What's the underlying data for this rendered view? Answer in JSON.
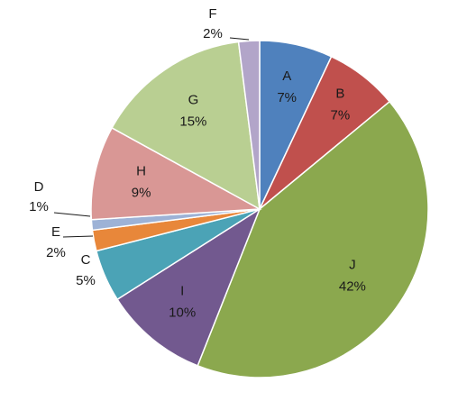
{
  "chart_data": {
    "type": "pie",
    "title": "",
    "start_angle_deg": 0,
    "direction": "clockwise",
    "legend": "none",
    "slices": [
      {
        "label": "A",
        "value": 7,
        "value_label": "7%",
        "color": "#4F81BD"
      },
      {
        "label": "B",
        "value": 7,
        "value_label": "7%",
        "color": "#C0504D"
      },
      {
        "label": "J",
        "value": 42,
        "value_label": "42%",
        "color": "#8BA84E"
      },
      {
        "label": "I",
        "value": 10,
        "value_label": "10%",
        "color": "#72598F"
      },
      {
        "label": "C",
        "value": 5,
        "value_label": "5%",
        "color": "#4BA3B6"
      },
      {
        "label": "E",
        "value": 2,
        "value_label": "2%",
        "color": "#E8873A"
      },
      {
        "label": "D",
        "value": 1,
        "value_label": "1%",
        "color": "#9DB2D6"
      },
      {
        "label": "H",
        "value": 9,
        "value_label": "9%",
        "color": "#D99795"
      },
      {
        "label": "G",
        "value": 15,
        "value_label": "15%",
        "color": "#B9CF92"
      },
      {
        "label": "F",
        "value": 2,
        "value_label": "2%",
        "color": "#B2A5C9"
      }
    ]
  }
}
